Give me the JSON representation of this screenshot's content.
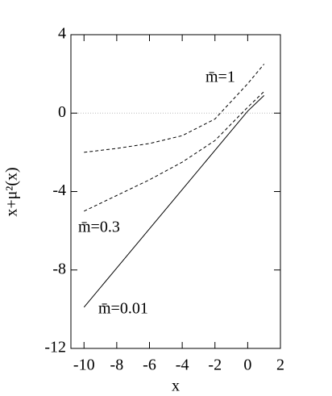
{
  "chart_data": {
    "type": "line",
    "x_label": "x",
    "y_label": "x+μ²(x)",
    "x": [
      -10,
      -8,
      -6,
      -4,
      -2,
      0,
      1
    ],
    "series": [
      {
        "name": "m̄=1",
        "color": "#000000",
        "dashed": true,
        "values": [
          -2.0,
          -1.8,
          -1.55,
          -1.15,
          -0.3,
          1.5,
          2.5
        ]
      },
      {
        "name": "m̄=0.3",
        "color": "#000000",
        "dashed": true,
        "values": [
          -5.0,
          -4.2,
          -3.4,
          -2.5,
          -1.4,
          0.3,
          1.1
        ]
      },
      {
        "name": "m̄=0.01",
        "color": "#000000",
        "dashed": false,
        "values": [
          -9.9,
          -7.9,
          -5.9,
          -3.9,
          -1.9,
          0.1,
          0.9
        ]
      }
    ],
    "xlim": [
      -10.8,
      2
    ],
    "ylim": [
      -12,
      4
    ],
    "xticks": [
      -10,
      -8,
      -6,
      -4,
      -2,
      0,
      2
    ],
    "yticks": [
      -12,
      -8,
      -4,
      0,
      4
    ],
    "zero_line": true
  }
}
